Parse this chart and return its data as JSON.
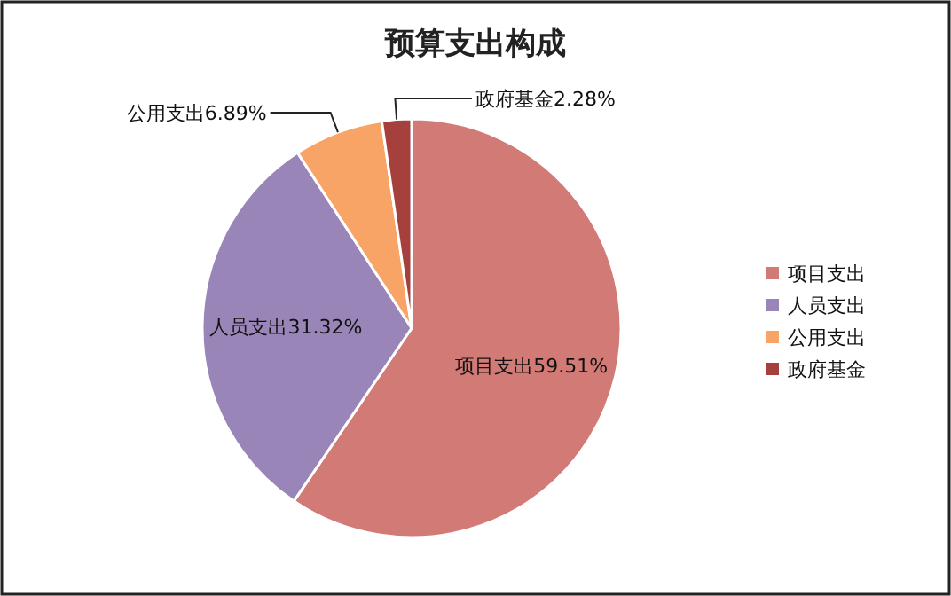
{
  "chart_data": {
    "type": "pie",
    "title": "预算支出构成",
    "categories": [
      "项目支出",
      "人员支出",
      "公用支出",
      "政府基金"
    ],
    "values": [
      59.51,
      31.32,
      6.89,
      2.28
    ],
    "value_labels": [
      "59.51%",
      "31.32%",
      "6.89%",
      "2.28%"
    ],
    "colors": [
      "#d27a76",
      "#9a85b8",
      "#f8a466",
      "#a5403d"
    ],
    "legend": "right"
  }
}
